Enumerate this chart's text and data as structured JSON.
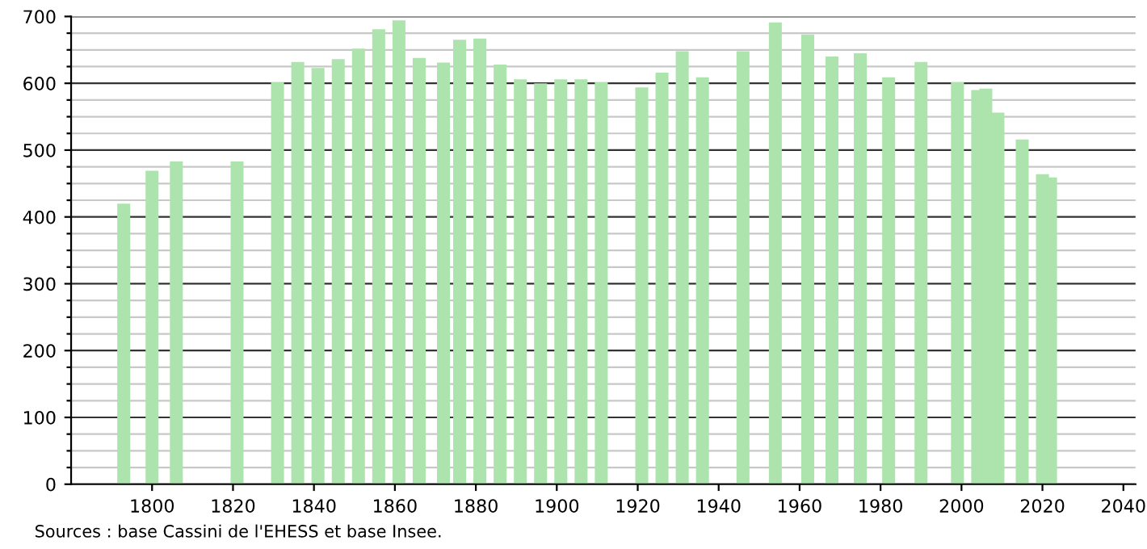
{
  "chart_data": {
    "type": "bar",
    "x": [
      1793,
      1800,
      1806,
      1821,
      1831,
      1836,
      1841,
      1846,
      1851,
      1856,
      1861,
      1866,
      1872,
      1876,
      1881,
      1886,
      1891,
      1896,
      1901,
      1906,
      1911,
      1921,
      1926,
      1931,
      1936,
      1946,
      1954,
      1962,
      1968,
      1975,
      1982,
      1990,
      1999,
      2004,
      2006,
      2009,
      2015,
      2020,
      2022
    ],
    "series": [
      {
        "color": "#ade3ad",
        "values": [
          420,
          469,
          483,
          483,
          602,
          632,
          623,
          636,
          652,
          681,
          694,
          638,
          631,
          665,
          667,
          628,
          606,
          600,
          606,
          606,
          602,
          594,
          616,
          648,
          609,
          648,
          691,
          673,
          640,
          645,
          609,
          632,
          602,
          590,
          592,
          556,
          516,
          464,
          459
        ]
      }
    ],
    "xlim": [
      1780,
      2043
    ],
    "xticks": [
      1800,
      1820,
      1840,
      1860,
      1880,
      1900,
      1920,
      1940,
      1960,
      1980,
      2000,
      2020,
      2040
    ],
    "ylim": [
      0,
      700
    ],
    "yticks": [
      0,
      {
        "value": 25,
        "label": null
      },
      {
        "value": 50,
        "label": null
      },
      {
        "value": 75,
        "label": null
      },
      100,
      {
        "value": 125,
        "label": null
      },
      {
        "value": 150,
        "label": null
      },
      {
        "value": 175,
        "label": null
      },
      200,
      {
        "value": 225,
        "label": null
      },
      {
        "value": 250,
        "label": null
      },
      {
        "value": 275,
        "label": null
      },
      300,
      {
        "value": 325,
        "label": null
      },
      {
        "value": 350,
        "label": null
      },
      {
        "value": 375,
        "label": null
      },
      400,
      {
        "value": 425,
        "label": null
      },
      {
        "value": 450,
        "label": null
      },
      {
        "value": 475,
        "label": null
      },
      500,
      {
        "value": 525,
        "label": null
      },
      {
        "value": 550,
        "label": null
      },
      {
        "value": 575,
        "label": null
      },
      600,
      {
        "value": 625,
        "label": null
      },
      {
        "value": 650,
        "label": null
      },
      {
        "value": 675,
        "label": null
      },
      700
    ],
    "grid": "y",
    "annotations": [
      "Sources : base Cassini de l'EHESS et base Insee."
    ]
  }
}
